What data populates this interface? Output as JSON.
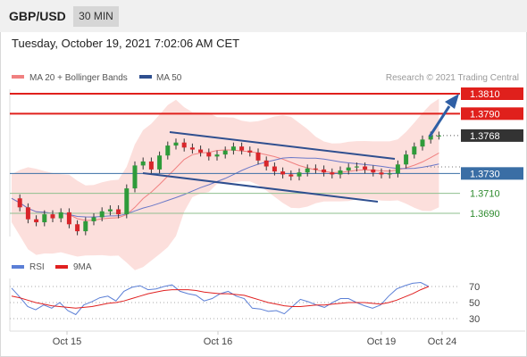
{
  "header": {
    "symbol": "GBP/USD",
    "timeframe": "30 MIN",
    "datetime": "Tuesday, October 19, 2021 7:02:06 AM CET"
  },
  "price_panel": {
    "legend": [
      {
        "label": "MA 20 + Bollinger Bands",
        "color": "#f08080"
      },
      {
        "label": "MA 50",
        "color": "#2f4f8f"
      }
    ],
    "credit": "Research © 2021 Trading Central"
  },
  "rsi_panel": {
    "legend": [
      {
        "label": "RSI",
        "color": "#5b7fd6"
      },
      {
        "label": "9MA",
        "color": "#e02020"
      }
    ]
  },
  "colors": {
    "resistance": "#e0201c",
    "pivot": "#3a6ea5",
    "support": "#2e8b2e",
    "current": "#333333",
    "channel": "#2f4f8f",
    "arrow": "#2f5fa5",
    "band_fill": "#fbd9d6",
    "candle_up": "#2e9b3a",
    "candle_down": "#d8262b"
  },
  "chart_data": [
    {
      "type": "candlestick",
      "panel": "price",
      "x_labels": [
        "Oct 15",
        "Oct 16",
        "Oct 19",
        "Oct 24"
      ],
      "y_range": [
        1.3648,
        1.3832
      ],
      "levels": [
        {
          "label": "1.3810",
          "value": 1.381,
          "kind": "resistance",
          "badge": true
        },
        {
          "label": "1.3790",
          "value": 1.379,
          "kind": "resistance",
          "badge": true
        },
        {
          "label": "1.3768",
          "value": 1.3768,
          "kind": "current",
          "badge": true
        },
        {
          "label": "1.3730",
          "value": 1.373,
          "kind": "pivot",
          "badge": true
        },
        {
          "label": "1.3710",
          "value": 1.371,
          "kind": "support",
          "badge": false
        },
        {
          "label": "1.3690",
          "value": 1.369,
          "kind": "support",
          "badge": false
        }
      ],
      "series": [
        {
          "name": "MA 20 + Bollinger Bands"
        },
        {
          "name": "MA 50"
        }
      ],
      "price_path": [
        1.3705,
        1.3696,
        1.3684,
        1.3681,
        1.3689,
        1.3685,
        1.3691,
        1.3679,
        1.3672,
        1.3682,
        1.3686,
        1.3692,
        1.3694,
        1.3689,
        1.3715,
        1.3738,
        1.3742,
        1.3734,
        1.3748,
        1.3758,
        1.3761,
        1.3756,
        1.3754,
        1.3751,
        1.3747,
        1.3749,
        1.3753,
        1.3757,
        1.3753,
        1.3751,
        1.3743,
        1.3737,
        1.3732,
        1.3729,
        1.3727,
        1.3731,
        1.3735,
        1.3734,
        1.3731,
        1.3729,
        1.3733,
        1.3736,
        1.3737,
        1.3734,
        1.3731,
        1.3729,
        1.373,
        1.3739,
        1.3749,
        1.3757,
        1.3764,
        1.3768,
        1.3768
      ]
    },
    {
      "type": "line",
      "panel": "rsi",
      "title": "RSI",
      "y_ticks": [
        70,
        50,
        30
      ],
      "ylim": [
        20,
        80
      ],
      "series": [
        {
          "name": "RSI",
          "values": [
            68,
            57,
            45,
            41,
            47,
            43,
            50,
            40,
            35,
            47,
            51,
            56,
            58,
            52,
            64,
            69,
            71,
            66,
            67,
            70,
            72,
            64,
            61,
            59,
            52,
            55,
            61,
            64,
            58,
            55,
            43,
            42,
            39,
            40,
            36,
            45,
            54,
            51,
            47,
            44,
            50,
            55,
            55,
            50,
            46,
            43,
            47,
            58,
            67,
            71,
            74,
            75,
            70
          ]
        },
        {
          "name": "9MA",
          "values": [
            58,
            56,
            53,
            50,
            48,
            46,
            45,
            44,
            43,
            44,
            45,
            47,
            49,
            50,
            52,
            55,
            58,
            61,
            63,
            65,
            66,
            66,
            66,
            65,
            63,
            62,
            61,
            61,
            60,
            59,
            56,
            53,
            50,
            48,
            46,
            45,
            45,
            46,
            47,
            47,
            48,
            49,
            50,
            50,
            50,
            49,
            48,
            50,
            53,
            57,
            61,
            66,
            70
          ]
        }
      ]
    }
  ]
}
